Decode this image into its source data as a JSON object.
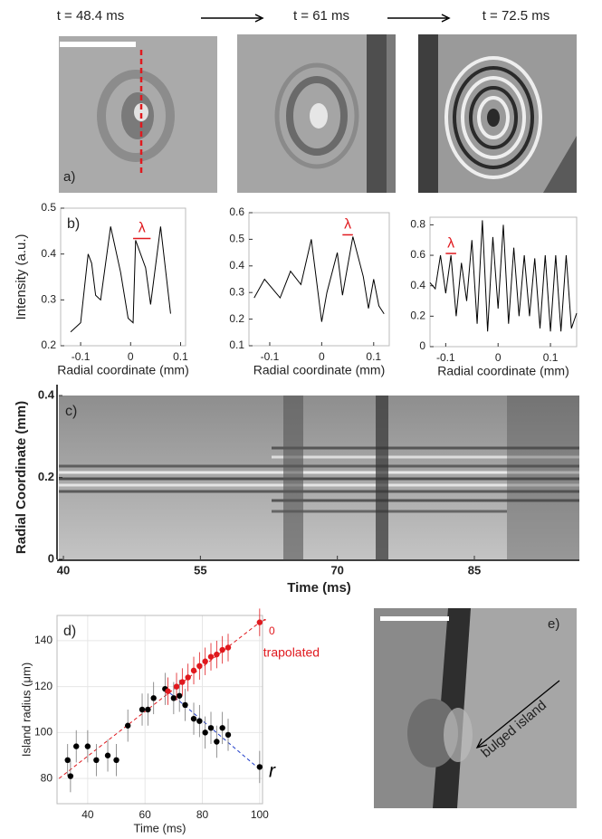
{
  "panels": {
    "a": {
      "label": "a)",
      "times": [
        "t = 48.4 ms",
        "t = 61 ms",
        "t = 72.5 ms"
      ]
    },
    "e": {
      "label": "e)",
      "annotation": "bulged island"
    }
  },
  "chart_data": [
    {
      "type": "line",
      "label": "b)",
      "ylabel": "Intensity (a.u.)",
      "xlabel": "Radial coordinate (mm)",
      "color": "#000000",
      "x": [
        -0.12,
        -0.1,
        -0.085,
        -0.078,
        -0.07,
        -0.06,
        -0.04,
        -0.02,
        -0.005,
        0.005,
        0.01,
        0.03,
        0.04,
        0.06,
        0.08
      ],
      "values": [
        0.23,
        0.25,
        0.4,
        0.38,
        0.31,
        0.3,
        0.46,
        0.36,
        0.26,
        0.25,
        0.43,
        0.37,
        0.29,
        0.46,
        0.27
      ],
      "xlim": [
        -0.14,
        0.11
      ],
      "xticks": [
        -0.1,
        0,
        0.1
      ],
      "ylim": [
        0.2,
        0.5
      ],
      "yticks": [
        0.2,
        0.3,
        0.4,
        0.5
      ],
      "marker": "λ"
    },
    {
      "type": "line",
      "xlabel": "Radial coordinate (mm)",
      "color": "#000000",
      "x": [
        -0.13,
        -0.11,
        -0.08,
        -0.06,
        -0.04,
        -0.02,
        0,
        0.01,
        0.03,
        0.04,
        0.06,
        0.08,
        0.09,
        0.1,
        0.11,
        0.12
      ],
      "values": [
        0.28,
        0.35,
        0.28,
        0.38,
        0.33,
        0.5,
        0.19,
        0.3,
        0.45,
        0.29,
        0.51,
        0.36,
        0.24,
        0.35,
        0.25,
        0.22
      ],
      "xlim": [
        -0.14,
        0.13
      ],
      "xticks": [
        -0.1,
        0,
        0.1
      ],
      "ylim": [
        0.1,
        0.6
      ],
      "yticks": [
        0.1,
        0.2,
        0.3,
        0.4,
        0.5,
        0.6
      ],
      "marker": "λ"
    },
    {
      "type": "line",
      "xlabel": "Radial coordinate (mm)",
      "color": "#000000",
      "x": [
        -0.13,
        -0.12,
        -0.11,
        -0.1,
        -0.09,
        -0.08,
        -0.07,
        -0.06,
        -0.05,
        -0.04,
        -0.03,
        -0.02,
        -0.01,
        0,
        0.01,
        0.02,
        0.03,
        0.04,
        0.05,
        0.06,
        0.07,
        0.08,
        0.09,
        0.1,
        0.11,
        0.12,
        0.13,
        0.14,
        0.15
      ],
      "values": [
        0.42,
        0.38,
        0.6,
        0.35,
        0.6,
        0.2,
        0.55,
        0.3,
        0.7,
        0.15,
        0.83,
        0.1,
        0.72,
        0.25,
        0.8,
        0.15,
        0.65,
        0.2,
        0.6,
        0.2,
        0.58,
        0.12,
        0.6,
        0.1,
        0.6,
        0.1,
        0.6,
        0.12,
        0.22
      ],
      "xlim": [
        -0.13,
        0.15
      ],
      "xticks": [
        -0.1,
        0,
        0.1
      ],
      "ylim": [
        0,
        0.85
      ],
      "yticks": [
        0,
        0.2,
        0.4,
        0.6,
        0.8
      ],
      "marker": "λ"
    },
    {
      "type": "image",
      "label": "c)",
      "ylabel": "Radial Coordinate (mm)",
      "xlabel": "Time (ms)",
      "xlim": [
        39.5,
        96.5
      ],
      "xticks": [
        40,
        55,
        70,
        85
      ],
      "ylim": [
        0,
        0.4
      ],
      "yticks": [
        0,
        0.2,
        0.4
      ]
    },
    {
      "type": "scatter",
      "label": "d)",
      "ylabel": "Island radius (μm)",
      "xlabel": "Time (ms)",
      "grid": true,
      "xlim": [
        29.3,
        101
      ],
      "xticks": [
        40,
        60,
        80,
        100
      ],
      "ylim": [
        69,
        151
      ],
      "yticks": [
        80,
        100,
        120,
        140
      ],
      "series": [
        {
          "color": "#000000",
          "x": [
            33,
            34,
            36,
            40,
            43,
            47,
            50,
            54,
            59,
            61,
            63,
            67,
            70,
            72,
            74,
            77,
            79,
            81,
            83,
            85,
            87,
            89,
            100
          ],
          "values": [
            88,
            81,
            94,
            94,
            88,
            90,
            88,
            103,
            110,
            110,
            115,
            119,
            115,
            116,
            112,
            106,
            105,
            100,
            102,
            96,
            102,
            99,
            85
          ],
          "errors": [
            7,
            7,
            7,
            7,
            7,
            7,
            7,
            7,
            7,
            7,
            7,
            7,
            7,
            7,
            7,
            7,
            7,
            7,
            7,
            7,
            7,
            7,
            7
          ]
        },
        {
          "color": "#e0191e",
          "x": [
            68,
            71,
            73,
            75,
            77,
            79,
            81,
            83,
            85,
            87,
            89,
            100
          ],
          "values": [
            118,
            120,
            122,
            124,
            127,
            129,
            131,
            133,
            134,
            136,
            137,
            148
          ],
          "errors": [
            6,
            6,
            6,
            6,
            6,
            6,
            6,
            6,
            6,
            6,
            6,
            6
          ]
        }
      ],
      "fits": [
        {
          "color": "#e0191e",
          "x": [
            30,
            100
          ],
          "values": [
            80,
            148
          ]
        },
        {
          "color": "#1f3cc8",
          "x": [
            67,
            100
          ],
          "values": [
            119,
            84
          ]
        }
      ],
      "annotations": {
        "r0": "r",
        "r0_sub": "0",
        "extrapolated": "extrapolated",
        "r": "r"
      }
    }
  ]
}
